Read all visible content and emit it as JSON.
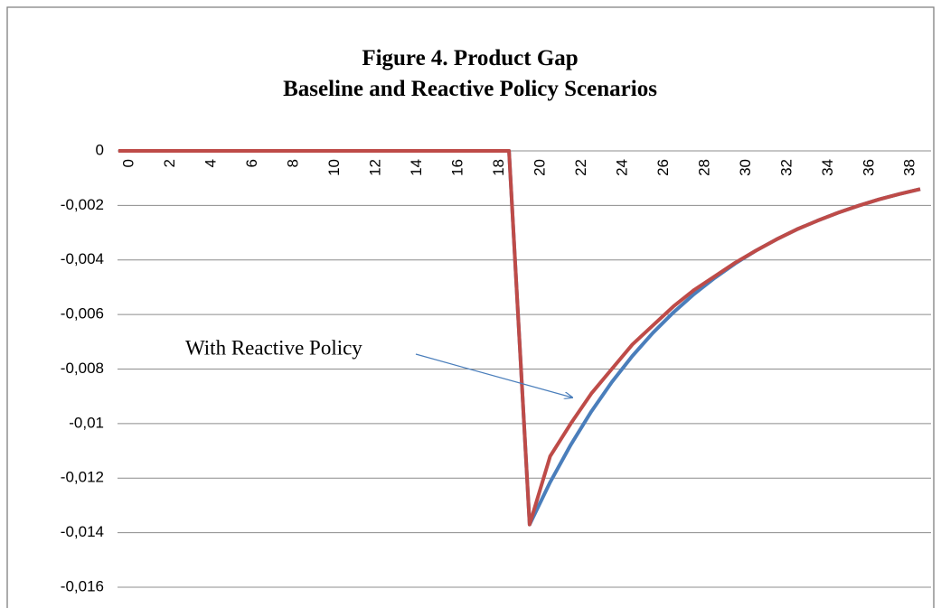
{
  "chart_data": {
    "type": "line",
    "title": "Figure 4. Product Gap",
    "subtitle": "Baseline and Reactive Policy Scenarios",
    "annotation": "With Reactive Policy",
    "x": [
      0,
      1,
      2,
      3,
      4,
      5,
      6,
      7,
      8,
      9,
      10,
      11,
      12,
      13,
      14,
      15,
      16,
      17,
      18,
      19,
      20,
      21,
      22,
      23,
      24,
      25,
      26,
      27,
      28,
      29,
      30,
      31,
      32,
      33,
      34,
      35,
      36,
      37,
      38,
      39
    ],
    "xlim": [
      0,
      39
    ],
    "xticks": [
      0,
      2,
      4,
      6,
      8,
      10,
      12,
      14,
      16,
      18,
      20,
      22,
      24,
      26,
      28,
      30,
      32,
      34,
      36,
      38
    ],
    "ylim": [
      -0.016,
      0
    ],
    "yticks": [
      0,
      {
        "value": -0.002,
        "label": "-0,002"
      },
      {
        "value": -0.004,
        "label": "-0,004"
      },
      {
        "value": -0.006,
        "label": "-0,006"
      },
      {
        "value": -0.008,
        "label": "-0,008"
      },
      {
        "value": -0.01,
        "label": "-0,01"
      },
      {
        "value": -0.012,
        "label": "-0,012"
      },
      {
        "value": -0.014,
        "label": "-0,014"
      },
      {
        "value": -0.016,
        "label": "-0,016"
      }
    ],
    "grid": true,
    "series": [
      {
        "color": "#4a7ebb",
        "values": [
          0,
          0,
          0,
          0,
          0,
          0,
          0,
          0,
          0,
          0,
          0,
          0,
          0,
          0,
          0,
          0,
          0,
          0,
          0,
          0,
          -0.0137,
          -0.01215,
          -0.01078,
          -0.00956,
          -0.00848,
          -0.00752,
          -0.00667,
          -0.00592,
          -0.00525,
          -0.00466,
          -0.00413,
          -0.00366,
          -0.00325,
          -0.00288,
          -0.00256,
          -0.00227,
          -0.00201,
          -0.00178,
          -0.00158,
          -0.0014
        ]
      },
      {
        "color": "#be4b48",
        "values": [
          0,
          0,
          0,
          0,
          0,
          0,
          0,
          0,
          0,
          0,
          0,
          0,
          0,
          0,
          0,
          0,
          0,
          0,
          0,
          0,
          -0.0137,
          -0.0112,
          -0.01,
          -0.0089,
          -0.008,
          -0.0071,
          -0.0064,
          -0.0057,
          -0.0051,
          -0.0046,
          -0.0041,
          -0.00366,
          -0.00325,
          -0.00288,
          -0.00256,
          -0.00227,
          -0.00201,
          -0.00178,
          -0.00158,
          -0.0014
        ]
      }
    ]
  }
}
